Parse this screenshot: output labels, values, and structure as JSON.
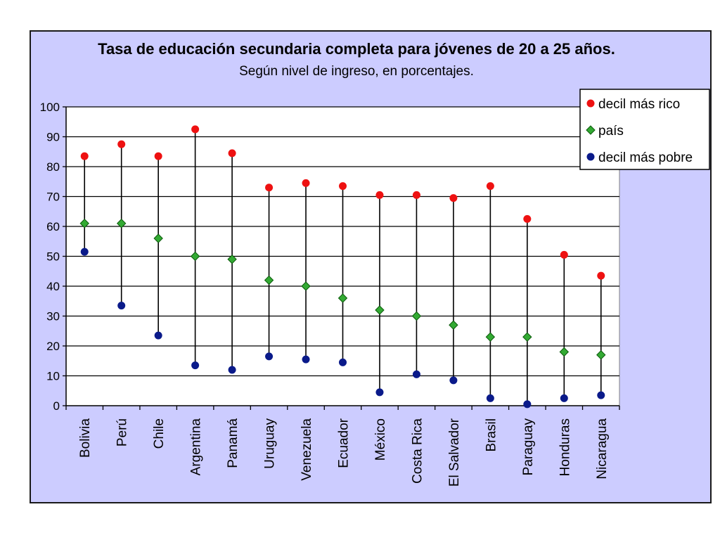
{
  "chart_data": {
    "type": "scatter",
    "title": "Tasa de educación secundaria completa para jóvenes de 20 a 25 años.",
    "subtitle": "Según nivel de ingreso, en porcentajes.",
    "ylim": [
      0,
      100
    ],
    "yticks": [
      0,
      10,
      20,
      30,
      40,
      50,
      60,
      70,
      80,
      90,
      100
    ],
    "grid": true,
    "legend_position": "top-right",
    "categories": [
      "Bolivia",
      "Perú",
      "Chile",
      "Argentina",
      "Panamá",
      "Uruguay",
      "Venezuela",
      "Ecuador",
      "México",
      "Costa Rica",
      "El Salvador",
      "Brasil",
      "Paraguay",
      "Honduras",
      "Nicaragua"
    ],
    "series": [
      {
        "name": "decil más rico",
        "marker": "circle",
        "color": "#ee1111",
        "values": [
          83.5,
          87.5,
          83.5,
          92.5,
          84.5,
          73,
          74.5,
          73.5,
          70.5,
          70.5,
          69.5,
          73.5,
          62.5,
          50.5,
          43.5
        ]
      },
      {
        "name": "país",
        "marker": "diamond",
        "color": "#33aa33",
        "values": [
          61,
          61,
          56,
          50,
          49,
          42,
          40,
          36,
          32,
          30,
          27,
          23,
          23,
          18,
          17
        ]
      },
      {
        "name": "decil más pobre",
        "marker": "circle",
        "color": "#0a1a8a",
        "values": [
          51.5,
          33.5,
          23.5,
          13.5,
          12,
          16.5,
          15.5,
          14.5,
          4.5,
          10.5,
          8.5,
          2.5,
          0.5,
          2.5,
          3.5
        ]
      }
    ]
  }
}
